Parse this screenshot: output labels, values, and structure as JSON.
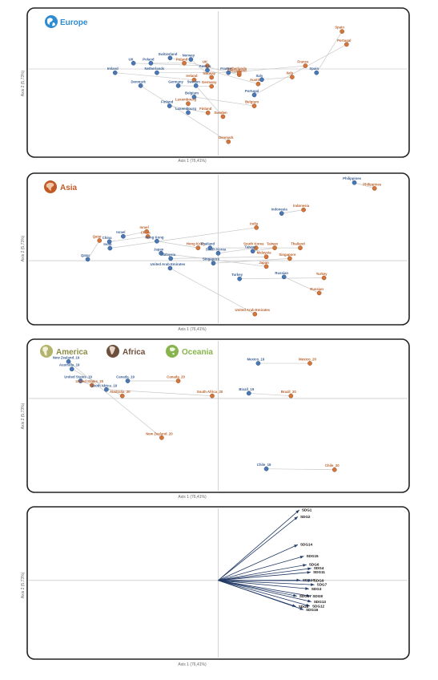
{
  "colors": {
    "y2019": "#4a78b5",
    "y2020": "#d2763c",
    "label2019": "#3a5f93",
    "label2020": "#b85f2a",
    "europe_title": "#2e8bcf",
    "asia_title": "#c25a28",
    "america_title": "#8c8c46",
    "africa_title": "#6e4f3c",
    "oceania_title": "#87b44c",
    "vector": "#233a66"
  },
  "chart_data": [
    {
      "type": "scatter",
      "panel": "europe",
      "title": "Europe",
      "xlabel": "Axis 1 (76,41%)",
      "ylabel": "Axis 2 (5,73%)",
      "grid": false,
      "points": [
        {
          "label": "UK",
          "year": 2019,
          "x": -2.82,
          "y": 0.2
        },
        {
          "label": "UK",
          "year": 2020,
          "x": -0.36,
          "y": 0.11
        },
        {
          "label": "Switzerland",
          "year": 2019,
          "x": -1.6,
          "y": 0.38
        },
        {
          "label": "Switzerland",
          "year": 2020,
          "x": 0.7,
          "y": -0.2
        },
        {
          "label": "Norway",
          "year": 2019,
          "x": -0.91,
          "y": 0.33
        },
        {
          "label": "Norway",
          "year": 2020,
          "x": -0.22,
          "y": -0.29
        },
        {
          "label": "Poland",
          "year": 2019,
          "x": -2.24,
          "y": 0.2
        },
        {
          "label": "Poland",
          "year": 2020,
          "x": -1.13,
          "y": 0.2
        },
        {
          "label": "Ireland",
          "year": 2019,
          "x": -3.43,
          "y": -0.13
        },
        {
          "label": "Ireland",
          "year": 2020,
          "x": -0.8,
          "y": -0.38
        },
        {
          "label": "Netherlands",
          "year": 2019,
          "x": -2.04,
          "y": -0.13
        },
        {
          "label": "Netherlands",
          "year": 2020,
          "x": 0.7,
          "y": -0.13
        },
        {
          "label": "Austria",
          "year": 2019,
          "x": -0.36,
          "y": -0.04
        },
        {
          "label": "Austria",
          "year": 2020,
          "x": 1.33,
          "y": -0.52
        },
        {
          "label": "France",
          "year": 2019,
          "x": 0.34,
          "y": -0.13
        },
        {
          "label": "France",
          "year": 2020,
          "x": 2.9,
          "y": 0.11
        },
        {
          "label": "Germany",
          "year": 2019,
          "x": -1.33,
          "y": -0.58
        },
        {
          "label": "Germany",
          "year": 2020,
          "x": -0.22,
          "y": -0.6
        },
        {
          "label": "Sweden",
          "year": 2019,
          "x": -0.74,
          "y": -0.58
        },
        {
          "label": "Sweden",
          "year": 2020,
          "x": 0.16,
          "y": -1.65
        },
        {
          "label": "Denmark",
          "year": 2019,
          "x": -2.58,
          "y": -0.58
        },
        {
          "label": "Denmark",
          "year": 2020,
          "x": 0.34,
          "y": -2.52
        },
        {
          "label": "Italy",
          "year": 2019,
          "x": 1.45,
          "y": -0.37
        },
        {
          "label": "Italy",
          "year": 2020,
          "x": 2.46,
          "y": -0.28
        },
        {
          "label": "Spain",
          "year": 2019,
          "x": 3.27,
          "y": -0.13
        },
        {
          "label": "Spain",
          "year": 2020,
          "x": 4.12,
          "y": 1.3
        },
        {
          "label": "Portugal",
          "year": 2019,
          "x": 1.2,
          "y": -0.9
        },
        {
          "label": "Portugal",
          "year": 2020,
          "x": 4.27,
          "y": 0.85
        },
        {
          "label": "Belgium",
          "year": 2019,
          "x": -0.8,
          "y": -0.97
        },
        {
          "label": "Belgium",
          "year": 2020,
          "x": 1.2,
          "y": -1.28
        },
        {
          "label": "Finland",
          "year": 2019,
          "x": -1.62,
          "y": -1.28
        },
        {
          "label": "Finland",
          "year": 2020,
          "x": -0.34,
          "y": -1.52
        },
        {
          "label": "Luxembourg",
          "year": 2019,
          "x": -1.0,
          "y": -1.51
        },
        {
          "label": "Luxembourg",
          "year": 2020,
          "x": -1.0,
          "y": -1.2
        }
      ]
    },
    {
      "type": "scatter",
      "panel": "asia",
      "title": "Asia",
      "xlabel": "Axis 1 (76,41%)",
      "ylabel": "Axis 2 (5,73%)",
      "grid": false,
      "points": [
        {
          "label": "Philippines",
          "year": 2019,
          "x": 4.53,
          "y": 5.0
        },
        {
          "label": "Philippines",
          "year": 2020,
          "x": 5.2,
          "y": 4.63
        },
        {
          "label": "Indonesia",
          "year": 2019,
          "x": 2.11,
          "y": 3.03
        },
        {
          "label": "Indonesia",
          "year": 2020,
          "x": 2.84,
          "y": 3.26
        },
        {
          "label": "India",
          "year": 2019,
          "x": -3.6,
          "y": 0.8
        },
        {
          "label": "India",
          "year": 2020,
          "x": 1.27,
          "y": 2.12
        },
        {
          "label": "Qatar",
          "year": 2019,
          "x": -4.34,
          "y": 0.09
        },
        {
          "label": "Qatar",
          "year": 2020,
          "x": -3.95,
          "y": 1.29
        },
        {
          "label": "China",
          "year": 2019,
          "x": -3.62,
          "y": 1.22
        },
        {
          "label": "China",
          "year": 2020,
          "x": -2.34,
          "y": 1.55
        },
        {
          "label": "Israel",
          "year": 2019,
          "x": -3.16,
          "y": 1.56
        },
        {
          "label": "Israel",
          "year": 2020,
          "x": -2.38,
          "y": 1.87
        },
        {
          "label": "Hong Kong",
          "year": 2019,
          "x": -2.04,
          "y": 1.25
        },
        {
          "label": "Hong Kong",
          "year": 2020,
          "x": -0.67,
          "y": 0.82
        },
        {
          "label": "Japan",
          "year": 2019,
          "x": -1.9,
          "y": 0.48
        },
        {
          "label": "Japan",
          "year": 2020,
          "x": 1.6,
          "y": -0.37
        },
        {
          "label": "Malaysia",
          "year": 2019,
          "x": -1.58,
          "y": 0.14
        },
        {
          "label": "Malaysia",
          "year": 2020,
          "x": 1.6,
          "y": 0.25
        },
        {
          "label": "Thailand",
          "year": 2019,
          "x": -0.27,
          "y": 0.82
        },
        {
          "label": "Thailand",
          "year": 2020,
          "x": 2.73,
          "y": 0.82
        },
        {
          "label": "South Korea",
          "year": 2019,
          "x": 0.0,
          "y": 0.48
        },
        {
          "label": "South Korea",
          "year": 2020,
          "x": 1.26,
          "y": 0.82
        },
        {
          "label": "Taiwan",
          "year": 2019,
          "x": 1.15,
          "y": 0.61
        },
        {
          "label": "Taiwan",
          "year": 2020,
          "x": 1.88,
          "y": 0.82
        },
        {
          "label": "Singapore",
          "year": 2019,
          "x": -0.16,
          "y": -0.16
        },
        {
          "label": "Singapore",
          "year": 2020,
          "x": 2.38,
          "y": 0.14
        },
        {
          "label": "United Arab Emirates",
          "year": 2019,
          "x": -1.6,
          "y": -0.48
        },
        {
          "label": "United Arab Emirates",
          "year": 2020,
          "x": 1.22,
          "y": -3.42
        },
        {
          "label": "Turkey",
          "year": 2019,
          "x": 0.71,
          "y": -1.16
        },
        {
          "label": "Turkey",
          "year": 2020,
          "x": 3.52,
          "y": -1.1
        },
        {
          "label": "Russian",
          "year": 2019,
          "x": 2.19,
          "y": -1.04
        },
        {
          "label": "Russian",
          "year": 2020,
          "x": 3.36,
          "y": -2.07
        }
      ]
    },
    {
      "type": "scatter",
      "panel": "america-africa-oceania",
      "titles": [
        "America",
        "Africa",
        "Oceania"
      ],
      "xlabel": "Axis 1 (76,41%)",
      "ylabel": "Axis 2 (5,73%)",
      "grid": false,
      "points": [
        {
          "label": "New Zealand_19",
          "year": 2019,
          "x": -4.98,
          "y": 1.28
        },
        {
          "label": "New Zealand_20",
          "year": 2020,
          "x": -1.88,
          "y": -1.36
        },
        {
          "label": "Australia_19",
          "year": 2019,
          "x": -4.87,
          "y": 1.02
        },
        {
          "label": "Australia_20",
          "year": 2020,
          "x": -3.19,
          "y": 0.09
        },
        {
          "label": "United States_19",
          "year": 2019,
          "x": -4.58,
          "y": 0.61
        },
        {
          "label": "United States_20",
          "year": 2020,
          "x": -4.2,
          "y": 0.46
        },
        {
          "label": "South Africa_19",
          "year": 2019,
          "x": -3.72,
          "y": 0.31
        },
        {
          "label": "South Africa_20",
          "year": 2020,
          "x": -0.2,
          "y": 0.09
        },
        {
          "label": "Canada_19",
          "year": 2019,
          "x": -3.01,
          "y": 0.61
        },
        {
          "label": "Canada_20",
          "year": 2020,
          "x": -1.33,
          "y": 0.61
        },
        {
          "label": "Mexico_19",
          "year": 2019,
          "x": 1.33,
          "y": 1.22
        },
        {
          "label": "Mexico_20",
          "year": 2020,
          "x": 3.05,
          "y": 1.22
        },
        {
          "label": "Brazil_19",
          "year": 2019,
          "x": 1.02,
          "y": 0.18
        },
        {
          "label": "Brazil_20",
          "year": 2020,
          "x": 2.42,
          "y": 0.09
        },
        {
          "label": "Chile_19",
          "year": 2019,
          "x": 1.6,
          "y": -2.44
        },
        {
          "label": "Chile_20",
          "year": 2020,
          "x": 3.87,
          "y": -2.47
        }
      ]
    },
    {
      "type": "vectors",
      "panel": "sdg",
      "xlabel": "Axis 1 (76,41%)",
      "ylabel": "Axis 2 (5,73%)",
      "grid": false,
      "vectors": [
        {
          "label": "SDG1",
          "x": 2.7,
          "y": 2.74
        },
        {
          "label": "SDG2",
          "x": 2.65,
          "y": 2.48
        },
        {
          "label": "SDG14",
          "x": 2.65,
          "y": 1.39
        },
        {
          "label": "SDG15",
          "x": 2.85,
          "y": 0.94
        },
        {
          "label": "SDG6",
          "x": 2.94,
          "y": 0.61
        },
        {
          "label": "SDG4",
          "x": 3.1,
          "y": 0.47
        },
        {
          "label": "SDG11",
          "x": 3.08,
          "y": 0.32
        },
        {
          "label": "SDG10",
          "x": 2.73,
          "y": 0.01
        },
        {
          "label": "SDG9",
          "x": 3.1,
          "y": -0.01
        },
        {
          "label": "SDG7",
          "x": 3.2,
          "y": -0.17
        },
        {
          "label": "SDG3",
          "x": 3.02,
          "y": -0.33
        },
        {
          "label": "SDG8",
          "x": 3.06,
          "y": -0.61
        },
        {
          "label": "SDG17",
          "x": 2.62,
          "y": -0.61
        },
        {
          "label": "SDG13",
          "x": 3.1,
          "y": -0.83
        },
        {
          "label": "SDG12",
          "x": 3.05,
          "y": -1.0
        },
        {
          "label": "SDG5",
          "x": 2.59,
          "y": -1.02
        },
        {
          "label": "SDG16",
          "x": 2.84,
          "y": -1.14
        }
      ]
    }
  ]
}
